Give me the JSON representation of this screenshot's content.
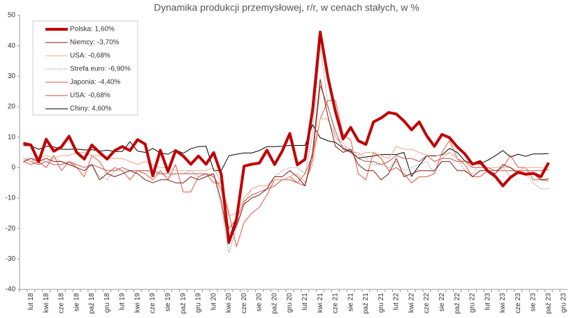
{
  "chart_data": {
    "type": "line",
    "title": "Dynamika produkcji przemysłowej, r/r, w cenach stałych, w %",
    "categories": [
      null,
      "lut 18",
      null,
      "kwi 18",
      null,
      "cze 18",
      null,
      "sie 18",
      null,
      "paź 18",
      null,
      "gru 18",
      null,
      "lut 19",
      null,
      "kwi 19",
      null,
      "cze 19",
      null,
      "sie 19",
      null,
      "paź 19",
      null,
      "gru 19",
      null,
      "lut 20",
      null,
      "kwi 20",
      null,
      "cze 20",
      null,
      "sie 20",
      null,
      "paź 20",
      null,
      "gru 20",
      null,
      "lut 21",
      null,
      "kwi 21",
      null,
      "cze 21",
      null,
      "sie 21",
      null,
      "paź 21",
      null,
      "gru 21",
      null,
      "lut 22",
      null,
      "kwi 22",
      null,
      "cze 22",
      null,
      "sie 22",
      null,
      "paź 22",
      null,
      "gru 22",
      null,
      "lut 23",
      null,
      "kwi 23",
      null,
      "cze 23",
      null,
      "sie 23",
      null,
      "paź 23",
      null,
      "gru 23"
    ],
    "series": [
      {
        "name": "Polska: 1,60%",
        "color": "#c00000",
        "width": 4,
        "values": [
          8.0,
          7.4,
          1.9,
          9.3,
          5.4,
          6.8,
          10.3,
          5.0,
          2.8,
          7.4,
          5.0,
          2.8,
          5.6,
          6.9,
          5.6,
          9.2,
          7.7,
          -2.7,
          5.7,
          -1.3,
          5.6,
          3.8,
          1.1,
          3.8,
          1.1,
          4.9,
          -2.3,
          -24.6,
          -17.0,
          0.5,
          1.1,
          1.5,
          5.7,
          1.0,
          5.4,
          11.2,
          0.9,
          2.7,
          18.9,
          44.5,
          29.8,
          18.4,
          9.4,
          13.2,
          8.8,
          7.6,
          15.0,
          16.3,
          18.1,
          17.6,
          15.3,
          12.4,
          15.0,
          10.4,
          7.0,
          10.9,
          9.8,
          6.8,
          4.5,
          1.1,
          2.0,
          -1.1,
          -2.9,
          -6.0,
          -3.2,
          -1.5,
          -2.2,
          -1.9,
          -3.0,
          1.6,
          null,
          null
        ]
      },
      {
        "name": "Niemcy: -3,70%",
        "color": "#7b1e12",
        "width": 1,
        "values": [
          2,
          3,
          2,
          3,
          2,
          2,
          1,
          0,
          -1,
          1,
          -4,
          -2,
          -3,
          -2,
          -1,
          -2,
          -4,
          -5,
          -4,
          -4,
          -5,
          -5,
          -3,
          -4,
          -3,
          -2,
          -11,
          -25,
          -19,
          -12,
          -10,
          -9,
          -7,
          -3,
          -3,
          -1,
          -3,
          -6,
          5,
          29,
          17,
          7,
          5,
          6,
          1,
          -1,
          -1,
          -4,
          -2,
          3,
          -3,
          -2,
          -1,
          -1,
          -1,
          2,
          2,
          -1,
          -1,
          -3,
          -1,
          -1,
          -2,
          1,
          0,
          -2,
          -2,
          -2,
          -4,
          -3.7,
          null,
          null
        ]
      },
      {
        "name": "USA: -0,68%",
        "color": "#f4a582",
        "width": 1,
        "values": [
          3,
          2,
          3,
          4,
          3,
          4,
          4,
          5,
          5,
          4,
          4,
          3,
          3,
          3,
          2,
          1,
          2,
          1,
          0,
          0,
          -1,
          -1,
          -1,
          -1,
          -1,
          0,
          -5,
          -16,
          -15,
          -10,
          -7,
          -6,
          -6,
          -4,
          -4,
          -3,
          -2,
          -5,
          1,
          16,
          16,
          10,
          7,
          6,
          4,
          5,
          5,
          4,
          3,
          7,
          6,
          6,
          5,
          4,
          4,
          4,
          5,
          3,
          2,
          1,
          1,
          0,
          0,
          0,
          0,
          -1,
          0,
          0,
          0,
          -0.68,
          null,
          null
        ]
      },
      {
        "name": "Strefa euro: -6,90%",
        "color": "#888888",
        "width": 1,
        "dash": true,
        "values": [
          3,
          3,
          3,
          2,
          3,
          2,
          1,
          1,
          0,
          1,
          -3,
          -4,
          -1,
          -1,
          -1,
          -1,
          -1,
          -2,
          -2,
          -3,
          -2,
          -2,
          -1,
          -3,
          -2,
          -2,
          -13,
          -28,
          -20,
          -12,
          -7,
          -6,
          -6,
          -3,
          -1,
          0,
          0,
          -2,
          11,
          40,
          21,
          10,
          8,
          5,
          5,
          3,
          1,
          1,
          0,
          2,
          -1,
          0,
          1,
          2,
          -2,
          3,
          5,
          3,
          -1,
          -2,
          1,
          -1,
          -1,
          0,
          -3,
          -2,
          -2,
          -5,
          -7,
          -6.9,
          null,
          null
        ]
      },
      {
        "name": "Japonia: -4,40%",
        "color": "#e8533a",
        "width": 1,
        "values": [
          2,
          1,
          2,
          0,
          4,
          -1,
          2,
          0,
          -3,
          4,
          2,
          -2,
          0,
          -1,
          -4,
          -1,
          -2,
          -4,
          -1,
          -4,
          1,
          -8,
          -8,
          -3,
          -2,
          -5,
          -5,
          -15,
          -26,
          -18,
          -15,
          -13,
          -9,
          -4,
          -4,
          -3,
          -5,
          -2,
          4,
          16,
          22,
          22,
          11,
          9,
          -2,
          -4,
          5,
          3,
          -1,
          0,
          -2,
          -5,
          -3,
          -3,
          -2,
          5,
          9,
          3,
          1,
          -3,
          -3,
          -1,
          -1,
          0,
          4,
          0,
          0,
          -4,
          -4,
          -4.4,
          null,
          null
        ]
      },
      {
        "name": "USA: -0,68%",
        "color": "#c0504d",
        "width": 1,
        "values": [
          3,
          2,
          1,
          2,
          1,
          1,
          2,
          1,
          0,
          1,
          0,
          -1,
          -1,
          0,
          -1,
          -1,
          -1,
          -1,
          -2,
          -2,
          -2,
          -2,
          -2,
          -2,
          -2,
          -3,
          -7,
          -20,
          -17,
          -11,
          -9,
          -8,
          -7,
          -6,
          -4,
          -4,
          -5,
          -6,
          3,
          27,
          20,
          12,
          6,
          5,
          3,
          2,
          2,
          1,
          2,
          4,
          3,
          3,
          2,
          4,
          2,
          3,
          3,
          2,
          2,
          0,
          0,
          0,
          -1,
          -1,
          -1,
          -1,
          -1,
          -1,
          -1,
          -0.68,
          null,
          null
        ]
      },
      {
        "name": "Chiny: 4,60%",
        "color": "#000000",
        "width": 1,
        "values": [
          7.2,
          7.2,
          6.0,
          7.0,
          6.8,
          6.0,
          6.0,
          6.1,
          5.8,
          5.9,
          5.4,
          5.7,
          5.3,
          5.3,
          8.5,
          5.4,
          5.0,
          6.3,
          4.8,
          4.4,
          5.8,
          4.7,
          6.2,
          6.9,
          7,
          -1,
          -1,
          3.9,
          4.4,
          4.8,
          4.8,
          5.6,
          6.9,
          6.9,
          7.0,
          7.3,
          7.3,
          7.3,
          14.1,
          9.8,
          8.8,
          8.3,
          6.4,
          5.3,
          3.1,
          3.5,
          3.8,
          4.3,
          4.3,
          4.3,
          5.0,
          -2.9,
          0.7,
          3.9,
          3.8,
          4.2,
          6.3,
          5.0,
          2.2,
          1.3,
          1.3,
          2.4,
          3.9,
          5.6,
          3.5,
          4.4,
          3.7,
          4.5,
          4.5,
          4.6,
          null,
          null
        ]
      }
    ],
    "ylim": [
      -40,
      50
    ],
    "yticks": [
      -40,
      -30,
      -20,
      -10,
      0,
      10,
      20,
      30,
      40,
      50
    ],
    "grid": false,
    "legend": "upper left"
  }
}
